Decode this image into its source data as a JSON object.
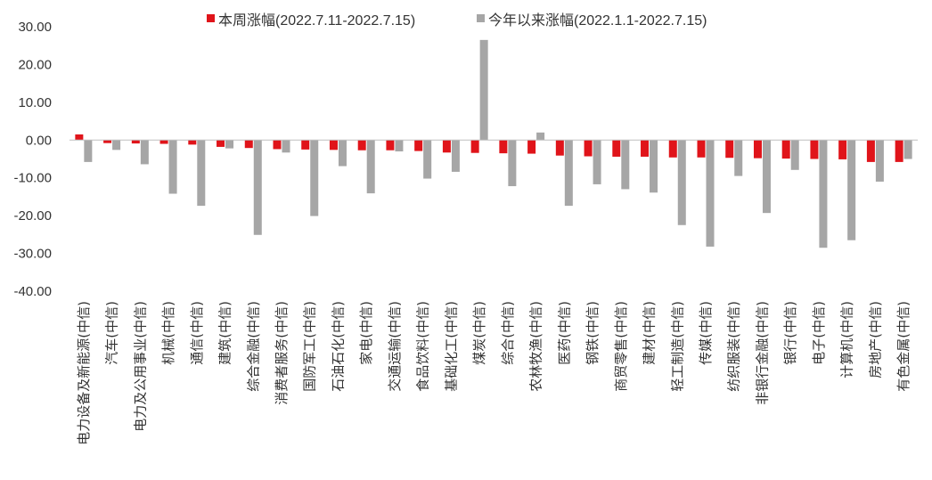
{
  "chart_data": {
    "type": "bar",
    "title": "",
    "xlabel": "",
    "ylabel": "",
    "ylim": [
      -40,
      30
    ],
    "yticks": [
      30,
      20,
      10,
      0,
      -10,
      -20,
      -30,
      -40
    ],
    "ytick_labels": [
      "30.00",
      "20.00",
      "10.00",
      "0.00",
      "-10.00",
      "-20.00",
      "-30.00",
      "-40.00"
    ],
    "grid": false,
    "legend_position": "top",
    "categories": [
      "电力设备及新能源(中信)",
      "汽车(中信)",
      "电力及公用事业(中信)",
      "机械(中信)",
      "通信(中信)",
      "建筑(中信)",
      "综合金融(中信)",
      "消费者服务(中信)",
      "国防军工(中信)",
      "石油石化(中信)",
      "家电(中信)",
      "交通运输(中信)",
      "食品饮料(中信)",
      "基础化工(中信)",
      "煤炭(中信)",
      "综合(中信)",
      "农林牧渔(中信)",
      "医药(中信)",
      "钢铁(中信)",
      "商贸零售(中信)",
      "建材(中信)",
      "轻工制造(中信)",
      "传媒(中信)",
      "纺织服装(中信)",
      "非银行金融(中信)",
      "银行(中信)",
      "电子(中信)",
      "计算机(中信)",
      "房地产(中信)",
      "有色金属(中信)"
    ],
    "series": [
      {
        "name": "本周涨幅(2022.7.11-2022.7.15)",
        "color": "#e0141a",
        "values": [
          1.5,
          -0.8,
          -0.9,
          -1.0,
          -1.2,
          -1.8,
          -2.1,
          -2.4,
          -2.5,
          -2.6,
          -2.7,
          -2.7,
          -2.9,
          -3.3,
          -3.4,
          -3.5,
          -3.6,
          -4.1,
          -4.3,
          -4.4,
          -4.4,
          -4.6,
          -4.6,
          -4.7,
          -4.8,
          -4.9,
          -5.0,
          -5.1,
          -5.8,
          -5.8
        ]
      },
      {
        "name": "今年以来涨幅(2022.1.1-2022.7.15)",
        "color": "#a6a6a6",
        "values": [
          -5.8,
          -2.6,
          -6.4,
          -14.2,
          -17.4,
          -2.2,
          -25.1,
          -3.3,
          -20.1,
          -6.9,
          -14.1,
          -3.0,
          -10.2,
          -8.4,
          26.5,
          -12.2,
          2.0,
          -17.4,
          -11.7,
          -13.0,
          -13.9,
          -22.5,
          -28.2,
          -9.5,
          -19.3,
          -7.9,
          -28.5,
          -26.5,
          -11.0,
          -5.0
        ]
      }
    ]
  }
}
